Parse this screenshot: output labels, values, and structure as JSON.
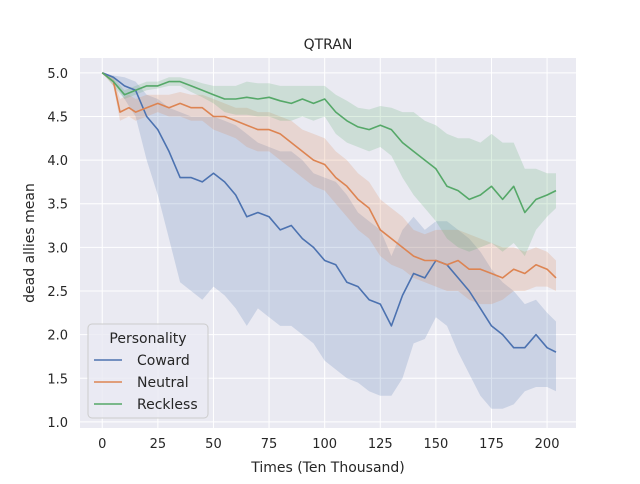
{
  "chart_data": {
    "type": "line",
    "title": "QTRAN",
    "xlabel": "Times (Ten Thousand)",
    "ylabel": "dead allies mean",
    "xlim": [
      -10,
      213
    ],
    "ylim": [
      0.93,
      5.17
    ],
    "xticks": [
      0,
      25,
      50,
      75,
      100,
      125,
      150,
      175,
      200
    ],
    "yticks": [
      1.0,
      1.5,
      2.0,
      2.5,
      3.0,
      3.5,
      4.0,
      4.5,
      5.0
    ],
    "xtick_labels": [
      "0",
      "25",
      "50",
      "75",
      "100",
      "125",
      "150",
      "175",
      "200"
    ],
    "ytick_labels": [
      "1.0",
      "1.5",
      "2.0",
      "2.5",
      "3.0",
      "3.5",
      "4.0",
      "4.5",
      "5.0"
    ],
    "grid": true,
    "background": "#EAEAF2",
    "legend": {
      "title": "Personality",
      "placement": "lower-left"
    },
    "series": [
      {
        "name": "Coward",
        "color": "#4C72B0",
        "x": [
          0,
          5,
          10,
          15,
          20,
          25,
          30,
          35,
          40,
          45,
          50,
          55,
          60,
          65,
          70,
          75,
          80,
          85,
          90,
          95,
          100,
          105,
          110,
          115,
          120,
          125,
          130,
          135,
          140,
          145,
          150,
          155,
          160,
          165,
          170,
          175,
          180,
          185,
          190,
          195,
          200,
          204
        ],
        "y": [
          5.0,
          4.95,
          4.85,
          4.8,
          4.5,
          4.35,
          4.1,
          3.8,
          3.8,
          3.75,
          3.85,
          3.75,
          3.6,
          3.35,
          3.4,
          3.35,
          3.2,
          3.25,
          3.1,
          3.0,
          2.85,
          2.8,
          2.6,
          2.55,
          2.4,
          2.35,
          2.1,
          2.45,
          2.7,
          2.65,
          2.85,
          2.8,
          2.65,
          2.5,
          2.3,
          2.1,
          2.0,
          1.85,
          1.85,
          2.0,
          1.85,
          1.8
        ],
        "lower": [
          5.0,
          4.9,
          4.7,
          4.5,
          4.0,
          3.6,
          3.1,
          2.6,
          2.5,
          2.4,
          2.55,
          2.45,
          2.3,
          2.1,
          2.3,
          2.2,
          2.1,
          2.1,
          2.0,
          1.9,
          1.7,
          1.6,
          1.5,
          1.45,
          1.35,
          1.3,
          1.3,
          1.5,
          1.9,
          1.95,
          2.2,
          2.1,
          1.8,
          1.55,
          1.3,
          1.15,
          1.15,
          1.2,
          1.35,
          1.4,
          1.4,
          1.35
        ],
        "upper": [
          5.0,
          4.97,
          4.95,
          4.9,
          4.75,
          4.7,
          4.6,
          4.55,
          4.5,
          4.5,
          4.5,
          4.45,
          4.4,
          4.3,
          4.2,
          4.15,
          4.1,
          4.1,
          4.0,
          3.85,
          3.8,
          3.75,
          3.6,
          3.4,
          3.3,
          3.2,
          2.9,
          3.2,
          3.35,
          3.2,
          3.3,
          3.3,
          3.2,
          3.1,
          2.95,
          2.75,
          2.6,
          2.5,
          2.35,
          2.4,
          2.25,
          2.15
        ]
      },
      {
        "name": "Neutral",
        "color": "#DD8452",
        "x": [
          0,
          5,
          8,
          12,
          15,
          20,
          25,
          30,
          35,
          40,
          45,
          50,
          55,
          60,
          65,
          70,
          75,
          80,
          85,
          90,
          95,
          100,
          105,
          110,
          115,
          120,
          125,
          130,
          135,
          140,
          145,
          150,
          155,
          160,
          165,
          170,
          175,
          180,
          185,
          190,
          195,
          200,
          204
        ],
        "y": [
          5.0,
          4.9,
          4.55,
          4.6,
          4.55,
          4.6,
          4.65,
          4.6,
          4.65,
          4.6,
          4.6,
          4.5,
          4.5,
          4.45,
          4.4,
          4.35,
          4.35,
          4.3,
          4.2,
          4.1,
          4.0,
          3.95,
          3.8,
          3.7,
          3.55,
          3.45,
          3.2,
          3.1,
          3.0,
          2.9,
          2.85,
          2.85,
          2.8,
          2.85,
          2.75,
          2.75,
          2.7,
          2.65,
          2.75,
          2.7,
          2.8,
          2.75,
          2.65
        ],
        "lower": [
          5.0,
          4.85,
          4.45,
          4.5,
          4.45,
          4.5,
          4.55,
          4.5,
          4.5,
          4.45,
          4.45,
          4.35,
          4.3,
          4.25,
          4.15,
          4.1,
          4.1,
          4.0,
          3.9,
          3.8,
          3.7,
          3.65,
          3.5,
          3.35,
          3.2,
          3.1,
          2.9,
          2.8,
          2.75,
          2.65,
          2.6,
          2.55,
          2.5,
          2.5,
          2.4,
          2.35,
          2.35,
          2.4,
          2.5,
          2.5,
          2.55,
          2.55,
          2.5
        ],
        "upper": [
          5.0,
          4.95,
          4.7,
          4.75,
          4.7,
          4.75,
          4.75,
          4.75,
          4.78,
          4.75,
          4.75,
          4.7,
          4.65,
          4.6,
          4.6,
          4.55,
          4.55,
          4.5,
          4.45,
          4.35,
          4.3,
          4.25,
          4.1,
          4.0,
          3.85,
          3.75,
          3.55,
          3.45,
          3.35,
          3.2,
          3.15,
          3.2,
          3.2,
          3.2,
          3.15,
          3.1,
          3.05,
          3.0,
          3.0,
          2.95,
          3.0,
          2.95,
          2.85
        ]
      },
      {
        "name": "Reckless",
        "color": "#55A868",
        "x": [
          0,
          5,
          10,
          15,
          20,
          25,
          30,
          35,
          40,
          45,
          50,
          55,
          60,
          65,
          70,
          75,
          80,
          85,
          90,
          95,
          100,
          105,
          110,
          115,
          120,
          125,
          130,
          135,
          140,
          145,
          150,
          155,
          160,
          165,
          170,
          175,
          180,
          185,
          190,
          195,
          200,
          204
        ],
        "y": [
          5.0,
          4.9,
          4.75,
          4.8,
          4.85,
          4.85,
          4.9,
          4.9,
          4.85,
          4.8,
          4.75,
          4.7,
          4.7,
          4.72,
          4.7,
          4.72,
          4.68,
          4.65,
          4.7,
          4.65,
          4.7,
          4.55,
          4.45,
          4.38,
          4.35,
          4.4,
          4.35,
          4.2,
          4.1,
          4.0,
          3.9,
          3.7,
          3.65,
          3.55,
          3.6,
          3.7,
          3.55,
          3.7,
          3.4,
          3.55,
          3.6,
          3.65
        ],
        "lower": [
          5.0,
          4.85,
          4.7,
          4.75,
          4.8,
          4.82,
          4.85,
          4.85,
          4.78,
          4.72,
          4.65,
          4.55,
          4.52,
          4.52,
          4.5,
          4.5,
          4.45,
          4.45,
          4.5,
          4.45,
          4.5,
          4.3,
          4.2,
          4.15,
          4.1,
          4.15,
          4.05,
          3.8,
          3.6,
          3.45,
          3.3,
          3.1,
          3.0,
          2.95,
          3.0,
          3.05,
          2.95,
          3.05,
          2.9,
          3.2,
          3.35,
          3.45
        ],
        "upper": [
          5.0,
          4.95,
          4.8,
          4.85,
          4.9,
          4.9,
          4.95,
          4.95,
          4.92,
          4.88,
          4.85,
          4.85,
          4.85,
          4.9,
          4.88,
          4.88,
          4.85,
          4.85,
          4.85,
          4.85,
          4.85,
          4.75,
          4.68,
          4.6,
          4.58,
          4.62,
          4.6,
          4.55,
          4.55,
          4.45,
          4.4,
          4.3,
          4.25,
          4.25,
          4.2,
          4.3,
          4.2,
          4.2,
          3.9,
          3.9,
          3.85,
          3.85
        ]
      }
    ]
  }
}
